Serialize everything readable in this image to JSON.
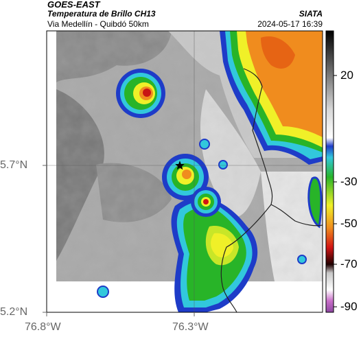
{
  "header": {
    "satellite": "GOES-EAST",
    "product": "Temperatura de Brillo CH13",
    "region": "Via Medellín - Quibdó 50km",
    "agency": "SIATA",
    "datetime": "2024-05-17 16:39"
  },
  "map": {
    "lat_ticks": [
      "5.7°N",
      "5.2°N"
    ],
    "lon_ticks": [
      "76.8°W",
      "76.3°W"
    ],
    "marker": "star"
  },
  "colorbar": {
    "ticks": [
      "20",
      "-30",
      "-50",
      "-70",
      "-90"
    ],
    "colors": {
      "gray_light": "#f0f0f0",
      "gray_dark": "#505050",
      "blue": "#1e64c8",
      "cyan": "#32c8dc",
      "green": "#28b428",
      "yellow": "#f0f028",
      "orange": "#f08c1e",
      "red": "#d21414",
      "black": "#000000",
      "purple": "#8c46a0"
    }
  }
}
